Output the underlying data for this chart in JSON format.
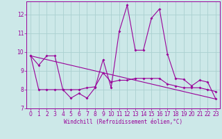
{
  "xlabel": "Windchill (Refroidissement éolien,°C)",
  "bg_color": "#cce8e8",
  "line_color": "#990099",
  "xlim": [
    -0.5,
    23.5
  ],
  "ylim": [
    7.0,
    12.7
  ],
  "yticks": [
    7,
    8,
    9,
    10,
    11,
    12
  ],
  "xticks": [
    0,
    1,
    2,
    3,
    4,
    5,
    6,
    7,
    8,
    9,
    10,
    11,
    12,
    13,
    14,
    15,
    16,
    17,
    18,
    19,
    20,
    21,
    22,
    23
  ],
  "series1_x": [
    0,
    1,
    2,
    3,
    4,
    5,
    6,
    7,
    8,
    9,
    10,
    11,
    12,
    13,
    14,
    15,
    16,
    17,
    18,
    19,
    20,
    21,
    22,
    23
  ],
  "series1_y": [
    9.8,
    9.3,
    9.8,
    9.8,
    8.0,
    7.55,
    7.8,
    7.55,
    8.1,
    9.6,
    8.1,
    11.1,
    12.5,
    10.1,
    10.1,
    11.8,
    12.3,
    9.9,
    8.6,
    8.55,
    8.2,
    8.5,
    8.4,
    7.5
  ],
  "series2_x": [
    0,
    1,
    2,
    3,
    4,
    5,
    6,
    7,
    8,
    9,
    10,
    11,
    12,
    13,
    14,
    15,
    16,
    17,
    18,
    19,
    20,
    21,
    22,
    23
  ],
  "series2_y": [
    9.8,
    8.0,
    8.0,
    8.0,
    8.0,
    8.0,
    8.0,
    8.1,
    8.15,
    8.9,
    8.4,
    8.5,
    8.5,
    8.6,
    8.6,
    8.6,
    8.6,
    8.3,
    8.2,
    8.1,
    8.1,
    8.1,
    8.0,
    7.9
  ],
  "series3_x": [
    0,
    23
  ],
  "series3_y": [
    9.8,
    7.5
  ],
  "grid_color": "#aad0d0",
  "marker": "D",
  "markersize": 2.0,
  "tick_fontsize": 5.5,
  "xlabel_fontsize": 5.5
}
